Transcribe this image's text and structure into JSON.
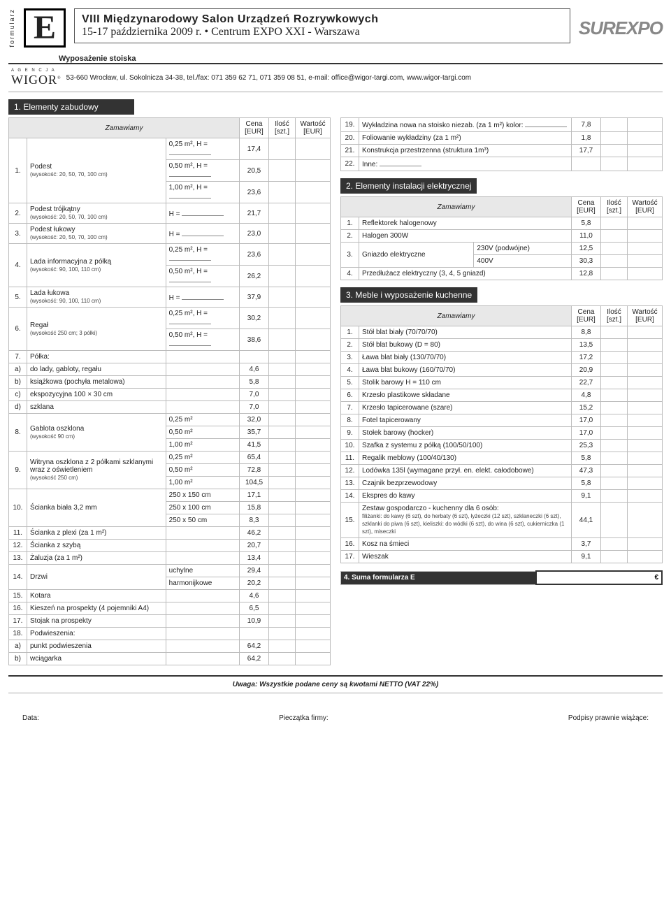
{
  "header": {
    "formularz": "formularz",
    "wyposazenie": "Wyposażenie stoiska",
    "title1": "VIII Międzynarodowy Salon Urządzeń Rozrywkowych",
    "title2": "15-17 października 2009 r. • Centrum EXPO XXI - Warszawa",
    "logo": "SUREXPO",
    "agencja": "A G E N C J A",
    "wigor": "WIGOR",
    "addr": "53-660 Wrocław, ul. Sokolnicza 34-38, tel./fax: 071 359 62 71, 071 359 08 51, e-mail: office@wigor-targi.com, www.wigor-targi.com"
  },
  "sections": {
    "s1": "1. Elementy zabudowy",
    "s2": "2. Elementy instalacji elektrycznej",
    "s3": "3. Meble i wyposażenie kuchenne",
    "s4": "4. Suma formularza E"
  },
  "cols": {
    "zam": "Zamawiamy",
    "cena": "Cena [EUR]",
    "ilosc": "Ilość [szt.]",
    "wart": "Wartość [EUR]"
  },
  "left": [
    {
      "n": "1.",
      "d": "Podest",
      "sub": "(wysokość: 20, 50, 70, 100 cm)",
      "opts": [
        [
          "0,25 m², H =",
          "17,4"
        ],
        [
          "0,50 m², H =",
          "20,5"
        ],
        [
          "1,00 m², H =",
          "23,6"
        ]
      ]
    },
    {
      "n": "2.",
      "d": "Podest trójkątny",
      "sub": "(wysokość: 20, 50, 70, 100 cm)",
      "opts": [
        [
          "H =",
          "21,7"
        ]
      ]
    },
    {
      "n": "3.",
      "d": "Podest łukowy",
      "sub": "(wysokość: 20, 50, 70, 100 cm)",
      "opts": [
        [
          "H =",
          "23,0"
        ]
      ]
    },
    {
      "n": "4.",
      "d": "Lada informacyjna z półką",
      "sub": "(wysokość: 90, 100, 110 cm)",
      "opts": [
        [
          "0,25 m², H =",
          "23,6"
        ],
        [
          "0,50 m², H =",
          "26,2"
        ]
      ]
    },
    {
      "n": "5.",
      "d": "Lada łukowa",
      "sub": "(wysokość: 90, 100, 110 cm)",
      "opts": [
        [
          "H =",
          "37,9"
        ]
      ]
    },
    {
      "n": "6.",
      "d": "Regał",
      "sub": "(wysokość 250 cm; 3 półki)",
      "opts": [
        [
          "0,25 m², H =",
          "30,2"
        ],
        [
          "0,50 m², H =",
          "38,6"
        ]
      ]
    },
    {
      "n": "7.",
      "d": "Półka:",
      "opts": [
        [
          "",
          ""
        ]
      ]
    },
    {
      "n": "a)",
      "d": "do lady, gabloty, regału",
      "opts": [
        [
          "",
          "4,6"
        ]
      ]
    },
    {
      "n": "b)",
      "d": "książkowa (pochyła metalowa)",
      "opts": [
        [
          "",
          "5,8"
        ]
      ]
    },
    {
      "n": "c)",
      "d": "ekspozycyjna 100 × 30 cm",
      "opts": [
        [
          "",
          "7,0"
        ]
      ]
    },
    {
      "n": "d)",
      "d": "szklana",
      "opts": [
        [
          "",
          "7,0"
        ]
      ]
    },
    {
      "n": "8.",
      "d": "Gablota oszklona",
      "sub": "(wysokość 90 cm)",
      "opts": [
        [
          "0,25 m²",
          "32,0"
        ],
        [
          "0,50 m²",
          "35,7"
        ],
        [
          "1,00 m²",
          "41,5"
        ]
      ]
    },
    {
      "n": "9.",
      "d": "Witryna oszklona z 2 półkami szklanymi wraz z oświetleniem",
      "sub": "(wysokość 250 cm)",
      "opts": [
        [
          "0,25 m²",
          "65,4"
        ],
        [
          "0,50 m²",
          "72,8"
        ],
        [
          "1,00 m²",
          "104,5"
        ]
      ]
    },
    {
      "n": "10.",
      "d": "Ścianka biała 3,2 mm",
      "opts": [
        [
          "250 x 150 cm",
          "17,1"
        ],
        [
          "250 x 100 cm",
          "15,8"
        ],
        [
          "250 x  50 cm",
          "8,3"
        ]
      ]
    },
    {
      "n": "11.",
      "d": "Ścianka z plexi (za 1 m²)",
      "opts": [
        [
          "",
          "46,2"
        ]
      ]
    },
    {
      "n": "12.",
      "d": "Ścianka z szybą",
      "opts": [
        [
          "",
          "20,7"
        ]
      ]
    },
    {
      "n": "13.",
      "d": "Żaluzja (za 1 m²)",
      "opts": [
        [
          "",
          "13,4"
        ]
      ]
    },
    {
      "n": "14.",
      "d": "Drzwi",
      "opts": [
        [
          "uchylne",
          "29,4"
        ],
        [
          "harmonijkowe",
          "20,2"
        ]
      ]
    },
    {
      "n": "15.",
      "d": "Kotara",
      "opts": [
        [
          "",
          "4,6"
        ]
      ]
    },
    {
      "n": "16.",
      "d": "Kieszeń na prospekty (4 pojemniki A4)",
      "opts": [
        [
          "",
          "6,5"
        ]
      ]
    },
    {
      "n": "17.",
      "d": "Stojak na prospekty",
      "opts": [
        [
          "",
          "10,9"
        ]
      ]
    },
    {
      "n": "18.",
      "d": "Podwieszenia:",
      "opts": [
        [
          "",
          ""
        ]
      ]
    },
    {
      "n": "a)",
      "d": "punkt podwieszenia",
      "opts": [
        [
          "",
          "64,2"
        ]
      ]
    },
    {
      "n": "b)",
      "d": "wciągarka",
      "opts": [
        [
          "",
          "64,2"
        ]
      ]
    }
  ],
  "right1": [
    {
      "n": "19.",
      "d": "Wykładzina nowa na stoisko niezab. (za 1 m²) kolor: ____",
      "p": "7,8"
    },
    {
      "n": "20.",
      "d": "Foliowanie wykładziny (za 1 m²)",
      "p": "1,8"
    },
    {
      "n": "21.",
      "d": "Konstrukcja przestrzenna (struktura 1m³)",
      "p": "17,7"
    },
    {
      "n": "22.",
      "d": "Inne: ____",
      "p": ""
    }
  ],
  "elec": [
    {
      "n": "1.",
      "d": "Reflektorek halogenowy",
      "p": "5,8"
    },
    {
      "n": "2.",
      "d": "Halogen 300W",
      "p": "11,0"
    },
    {
      "n": "3.",
      "d": "Gniazdo elektryczne",
      "opts": [
        [
          "230V (podwójne)",
          "12,5"
        ],
        [
          "400V",
          "30,3"
        ]
      ]
    },
    {
      "n": "4.",
      "d": "Przedłużacz elektryczny (3, 4, 5 gniazd)",
      "p": "12,8"
    }
  ],
  "meble": [
    {
      "n": "1.",
      "d": "Stół blat biały (70/70/70)",
      "p": "8,8"
    },
    {
      "n": "2.",
      "d": "Stół blat bukowy (D = 80)",
      "p": "13,5"
    },
    {
      "n": "3.",
      "d": "Ława blat biały (130/70/70)",
      "p": "17,2"
    },
    {
      "n": "4.",
      "d": "Ława blat bukowy (160/70/70)",
      "p": "20,9"
    },
    {
      "n": "5.",
      "d": "Stolik barowy H = 110 cm",
      "p": "22,7"
    },
    {
      "n": "6.",
      "d": "Krzesło plastikowe składane",
      "p": "4,8"
    },
    {
      "n": "7.",
      "d": "Krzesło tapicerowane (szare)",
      "p": "15,2"
    },
    {
      "n": "8.",
      "d": "Fotel tapicerowany",
      "p": "17,0"
    },
    {
      "n": "9.",
      "d": "Stołek barowy (hocker)",
      "p": "17,0"
    },
    {
      "n": "10.",
      "d": "Szafka z systemu z półką (100/50/100)",
      "p": "25,3"
    },
    {
      "n": "11.",
      "d": "Regalik meblowy (100/40/130)",
      "p": "5,8"
    },
    {
      "n": "12.",
      "d": "Lodówka 135l (wymagane przył. en. elekt. całodobowe)",
      "p": "47,3"
    },
    {
      "n": "13.",
      "d": "Czajnik bezprzewodowy",
      "p": "5,8"
    },
    {
      "n": "14.",
      "d": "Ekspres do kawy",
      "p": "9,1"
    },
    {
      "n": "15.",
      "d": "Zestaw gospodarczo - kuchenny dla 6 osób:",
      "sub": "filiżanki: do kawy (6 szt), do herbaty (6 szt), łyżeczki (12 szt), szklaneczki (6 szt), szklanki do piwa (6 szt), kieliszki: do wódki (6 szt), do wina (6 szt), cukierniczka (1 szt), miseczki",
      "p": "44,1"
    },
    {
      "n": "16.",
      "d": "Kosz na śmieci",
      "p": "3,7"
    },
    {
      "n": "17.",
      "d": "Wieszak",
      "p": "9,1"
    }
  ],
  "footer": {
    "note": "Uwaga: Wszystkie podane ceny są kwotami NETTO (VAT 22%)",
    "data": "Data:",
    "stamp": "Pieczątka firmy:",
    "sig": "Podpisy prawnie wiążące:",
    "euro": "€"
  }
}
